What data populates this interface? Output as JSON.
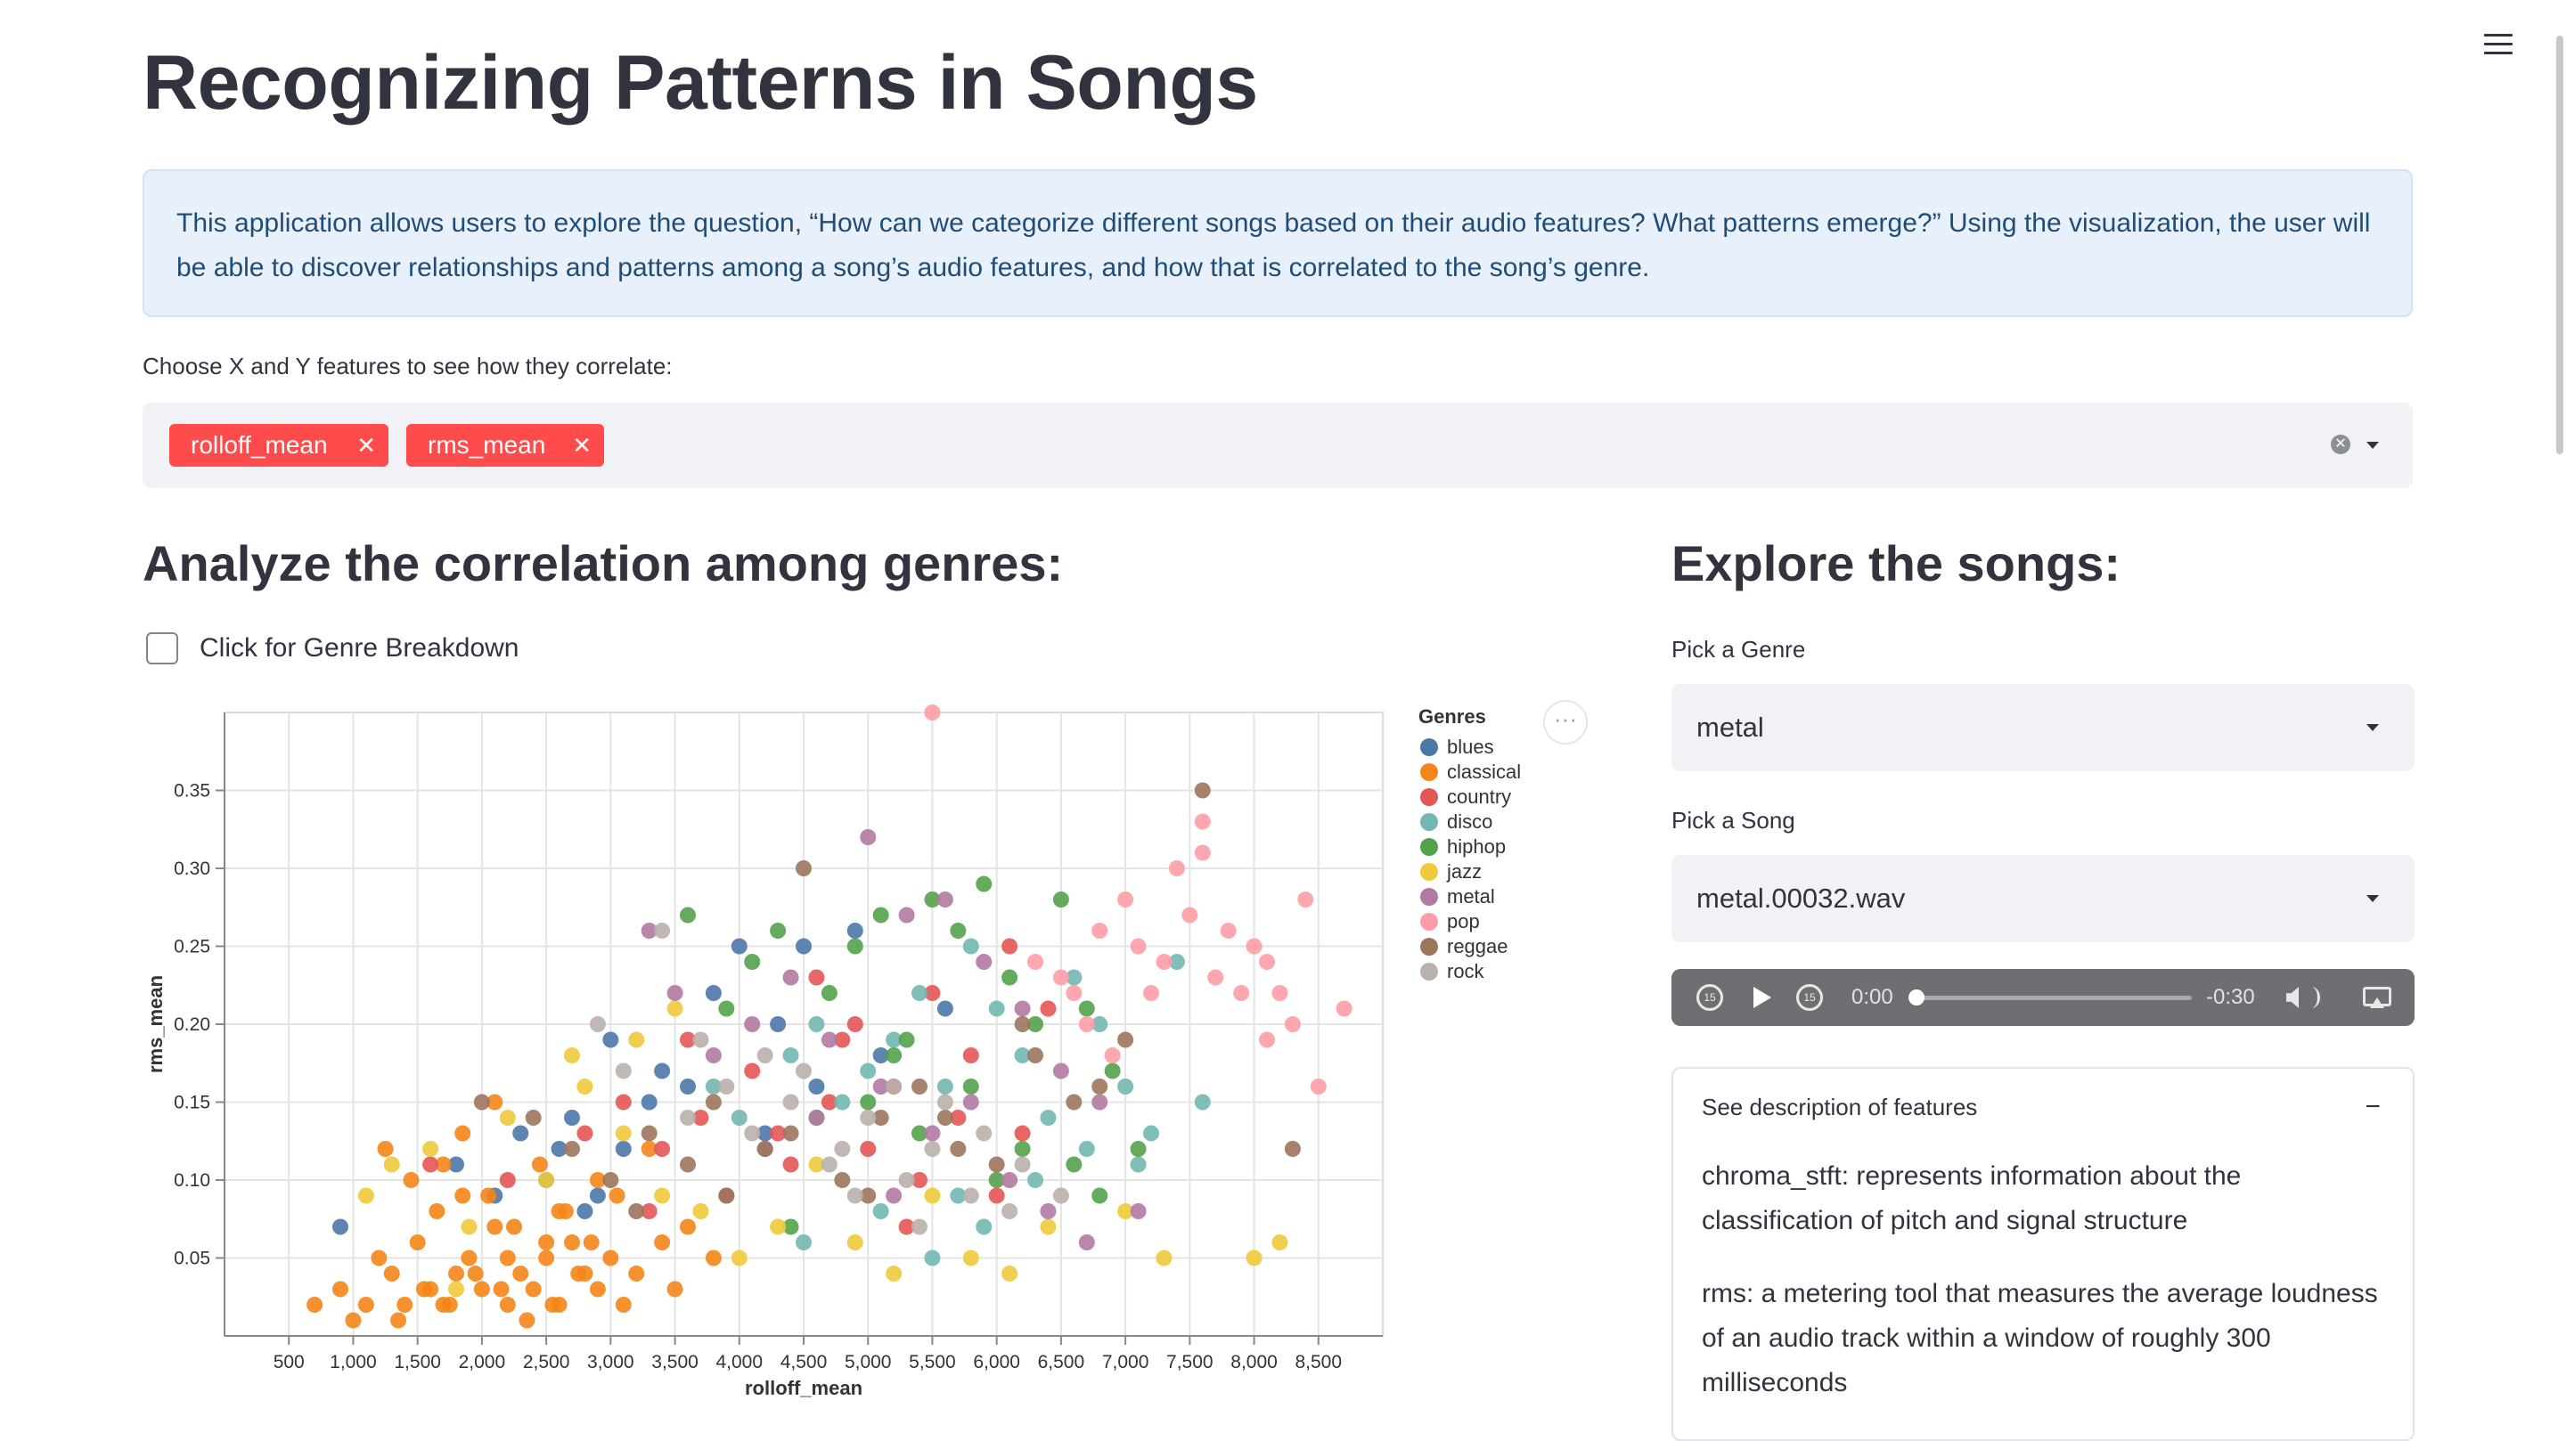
{
  "page": {
    "title": "Recognizing Patterns in Songs",
    "intro": "This application allows users to explore the question, “How can we categorize different songs based on their audio features? What patterns emerge?” Using the visualization, the user will be able to discover relationships and patterns among a song’s audio features, and how that is correlated to the song’s genre."
  },
  "feature_select": {
    "label": "Choose X and Y features to see how they correlate:",
    "selected": [
      "rolloff_mean",
      "rms_mean"
    ],
    "remove_glyph": "✕",
    "clear_glyph": "✕"
  },
  "analyze": {
    "heading": "Analyze the correlation among genres:",
    "checkbox_label": "Click for Genre Breakdown",
    "checkbox_checked": false,
    "chart_menu_glyph": "···"
  },
  "explore": {
    "heading": "Explore the songs:",
    "genre_label": "Pick a Genre",
    "genre_value": "metal",
    "song_label": "Pick a Song",
    "song_value": "metal.00032.wav",
    "audio": {
      "current_time": "0:00",
      "remaining_time": "-0:30",
      "skip_back_label": "15",
      "skip_fwd_label": "15",
      "progress": 0
    },
    "expander": {
      "header": "See description of features",
      "collapse_glyph": "−",
      "descriptions": [
        "chroma_stft: represents information about the classification of pitch and signal structure",
        "rms: a metering tool that measures the average loudness of an audio track within a window of roughly 300 milliseconds"
      ]
    }
  },
  "colors": {
    "accent": "#ff4b4b",
    "info_bg": "#e8f1fb",
    "info_text": "#1f4d78",
    "widget_bg": "#f0f2f6"
  },
  "chart_data": {
    "type": "scatter",
    "title": "",
    "xlabel": "rolloff_mean",
    "ylabel": "rms_mean",
    "xlim": [
      0,
      9000
    ],
    "ylim": [
      0,
      0.4
    ],
    "x_ticks": [
      500,
      1000,
      1500,
      2000,
      2500,
      3000,
      3500,
      4000,
      4500,
      5000,
      5500,
      6000,
      6500,
      7000,
      7500,
      8000,
      8500
    ],
    "x_tick_labels": [
      "500",
      "1,000",
      "1,500",
      "2,000",
      "2,500",
      "3,000",
      "3,500",
      "4,000",
      "4,500",
      "5,000",
      "5,500",
      "6,000",
      "6,500",
      "7,000",
      "7,500",
      "8,000",
      "8,500"
    ],
    "y_ticks": [
      0.05,
      0.1,
      0.15,
      0.2,
      0.25,
      0.3,
      0.35
    ],
    "y_tick_labels": [
      "0.05",
      "0.10",
      "0.15",
      "0.20",
      "0.25",
      "0.30",
      "0.35"
    ],
    "grid": true,
    "legend_title": "Genres",
    "legend_position": "right",
    "series": [
      {
        "name": "blues",
        "color": "#4c78a8",
        "x": [
          900,
          1800,
          2100,
          2300,
          2600,
          2800,
          3000,
          3300,
          3600,
          4000,
          4200,
          4500,
          4900,
          5100,
          3800,
          2700,
          2500,
          4300,
          3400,
          3100,
          2900,
          4600,
          5600
        ],
        "y": [
          0.07,
          0.11,
          0.09,
          0.13,
          0.12,
          0.08,
          0.19,
          0.15,
          0.16,
          0.25,
          0.13,
          0.25,
          0.26,
          0.18,
          0.22,
          0.14,
          0.1,
          0.2,
          0.17,
          0.12,
          0.09,
          0.16,
          0.21
        ]
      },
      {
        "name": "classical",
        "color": "#f58518",
        "x": [
          700,
          900,
          1000,
          1100,
          1200,
          1300,
          1400,
          1500,
          1600,
          1700,
          1800,
          1900,
          2000,
          2100,
          2200,
          2300,
          2400,
          2500,
          2600,
          2700,
          2800,
          2900,
          3000,
          3200,
          3400,
          3600,
          3800,
          1250,
          1450,
          1650,
          1850,
          2050,
          2250,
          2450,
          2650,
          2850,
          3050,
          1350,
          1550,
          1750,
          1950,
          2150,
          2350,
          2550,
          2750,
          1700,
          2100,
          2500,
          2900,
          3300,
          1850,
          2200,
          2600,
          3100,
          3500
        ],
        "y": [
          0.02,
          0.03,
          0.01,
          0.02,
          0.05,
          0.04,
          0.02,
          0.06,
          0.03,
          0.02,
          0.04,
          0.05,
          0.03,
          0.07,
          0.02,
          0.04,
          0.03,
          0.05,
          0.02,
          0.06,
          0.04,
          0.03,
          0.05,
          0.04,
          0.06,
          0.07,
          0.05,
          0.12,
          0.1,
          0.08,
          0.13,
          0.09,
          0.07,
          0.11,
          0.08,
          0.06,
          0.09,
          0.01,
          0.03,
          0.02,
          0.04,
          0.03,
          0.01,
          0.02,
          0.04,
          0.11,
          0.15,
          0.06,
          0.1,
          0.12,
          0.09,
          0.05,
          0.08,
          0.02,
          0.03
        ]
      },
      {
        "name": "country",
        "color": "#e45756",
        "x": [
          1600,
          2200,
          2800,
          3100,
          3400,
          3700,
          4100,
          4400,
          4600,
          4800,
          5200,
          5500,
          5800,
          6100,
          6400,
          3900,
          4300,
          4700,
          5000,
          5400,
          5700,
          6000,
          3300,
          3600,
          4900,
          5300,
          6200
        ],
        "y": [
          0.11,
          0.1,
          0.13,
          0.15,
          0.12,
          0.14,
          0.17,
          0.11,
          0.23,
          0.19,
          0.16,
          0.22,
          0.18,
          0.25,
          0.21,
          0.09,
          0.13,
          0.15,
          0.12,
          0.1,
          0.14,
          0.09,
          0.08,
          0.19,
          0.2,
          0.07,
          0.13
        ]
      },
      {
        "name": "disco",
        "color": "#72b7b2",
        "x": [
          3800,
          4000,
          4200,
          4400,
          4600,
          4800,
          5000,
          5200,
          5400,
          5600,
          5800,
          6000,
          6200,
          6400,
          6600,
          6800,
          7000,
          7200,
          7400,
          7600,
          4500,
          5100,
          5500,
          5900,
          6300,
          6700,
          7100,
          5700
        ],
        "y": [
          0.16,
          0.14,
          0.12,
          0.18,
          0.2,
          0.15,
          0.17,
          0.19,
          0.22,
          0.16,
          0.25,
          0.21,
          0.18,
          0.14,
          0.23,
          0.2,
          0.16,
          0.13,
          0.24,
          0.15,
          0.06,
          0.08,
          0.05,
          0.07,
          0.1,
          0.12,
          0.11,
          0.09
        ]
      },
      {
        "name": "hiphop",
        "color": "#54a24b",
        "x": [
          3600,
          3900,
          4100,
          4300,
          4700,
          4900,
          5100,
          5300,
          5500,
          5700,
          5900,
          6100,
          6300,
          6500,
          6700,
          6900,
          5000,
          5400,
          5800,
          6200,
          6600,
          4600,
          5200,
          6000,
          6800,
          7100,
          4400
        ],
        "y": [
          0.27,
          0.21,
          0.24,
          0.26,
          0.22,
          0.25,
          0.27,
          0.19,
          0.28,
          0.26,
          0.29,
          0.23,
          0.2,
          0.28,
          0.21,
          0.17,
          0.15,
          0.13,
          0.16,
          0.12,
          0.11,
          0.14,
          0.18,
          0.1,
          0.09,
          0.12,
          0.07
        ]
      },
      {
        "name": "jazz",
        "color": "#eeca3b",
        "x": [
          1100,
          1300,
          1600,
          1900,
          2200,
          2500,
          2800,
          3100,
          3400,
          3700,
          4000,
          4300,
          4600,
          4900,
          5200,
          5500,
          5800,
          6100,
          6400,
          7000,
          7300,
          8000,
          8200,
          3200,
          3500,
          2700,
          1800
        ],
        "y": [
          0.09,
          0.11,
          0.12,
          0.07,
          0.14,
          0.1,
          0.16,
          0.13,
          0.09,
          0.08,
          0.05,
          0.07,
          0.11,
          0.06,
          0.04,
          0.09,
          0.05,
          0.04,
          0.07,
          0.08,
          0.05,
          0.05,
          0.06,
          0.19,
          0.21,
          0.18,
          0.03
        ]
      },
      {
        "name": "metal",
        "color": "#b279a2",
        "x": [
          3300,
          3500,
          3800,
          4100,
          4400,
          4700,
          5000,
          5300,
          5600,
          5900,
          6200,
          6500,
          6800,
          7100,
          4200,
          4600,
          5100,
          5500,
          5800,
          6100,
          6400,
          6700,
          5200
        ],
        "y": [
          0.26,
          0.22,
          0.18,
          0.2,
          0.23,
          0.19,
          0.32,
          0.27,
          0.28,
          0.24,
          0.21,
          0.17,
          0.15,
          0.08,
          0.12,
          0.14,
          0.16,
          0.13,
          0.15,
          0.1,
          0.08,
          0.06,
          0.09
        ]
      },
      {
        "name": "pop",
        "color": "#ff9da6",
        "x": [
          5500,
          6300,
          6600,
          6800,
          7000,
          7100,
          7300,
          7400,
          7500,
          7600,
          7700,
          7800,
          7900,
          8000,
          8100,
          8200,
          8300,
          8400,
          8500,
          8700,
          7200,
          6900,
          6700,
          6500,
          7600,
          8100
        ],
        "y": [
          0.4,
          0.24,
          0.22,
          0.26,
          0.28,
          0.25,
          0.24,
          0.3,
          0.27,
          0.33,
          0.23,
          0.26,
          0.22,
          0.25,
          0.24,
          0.22,
          0.2,
          0.28,
          0.16,
          0.21,
          0.22,
          0.18,
          0.2,
          0.23,
          0.31,
          0.19
        ]
      },
      {
        "name": "reggae",
        "color": "#9d755d",
        "x": [
          2000,
          2400,
          2700,
          3000,
          3300,
          3600,
          3900,
          4200,
          4500,
          4800,
          5100,
          5400,
          5700,
          6000,
          6300,
          6600,
          7000,
          7600,
          8300,
          3200,
          3800,
          4400,
          5000,
          5600,
          6200,
          6800
        ],
        "y": [
          0.15,
          0.14,
          0.12,
          0.1,
          0.13,
          0.11,
          0.09,
          0.12,
          0.3,
          0.1,
          0.14,
          0.16,
          0.12,
          0.11,
          0.18,
          0.15,
          0.19,
          0.35,
          0.12,
          0.08,
          0.15,
          0.13,
          0.09,
          0.14,
          0.2,
          0.16
        ]
      },
      {
        "name": "rock",
        "color": "#bab0ac",
        "x": [
          2900,
          3100,
          3400,
          3600,
          3900,
          4200,
          4500,
          4800,
          5000,
          5300,
          5600,
          5900,
          6200,
          6500,
          4100,
          4400,
          4700,
          5200,
          5500,
          5800,
          6100,
          3700,
          4900,
          5400
        ],
        "y": [
          0.2,
          0.17,
          0.26,
          0.14,
          0.16,
          0.18,
          0.17,
          0.12,
          0.14,
          0.1,
          0.15,
          0.13,
          0.11,
          0.09,
          0.13,
          0.15,
          0.11,
          0.16,
          0.12,
          0.09,
          0.08,
          0.19,
          0.09,
          0.07
        ]
      }
    ]
  }
}
